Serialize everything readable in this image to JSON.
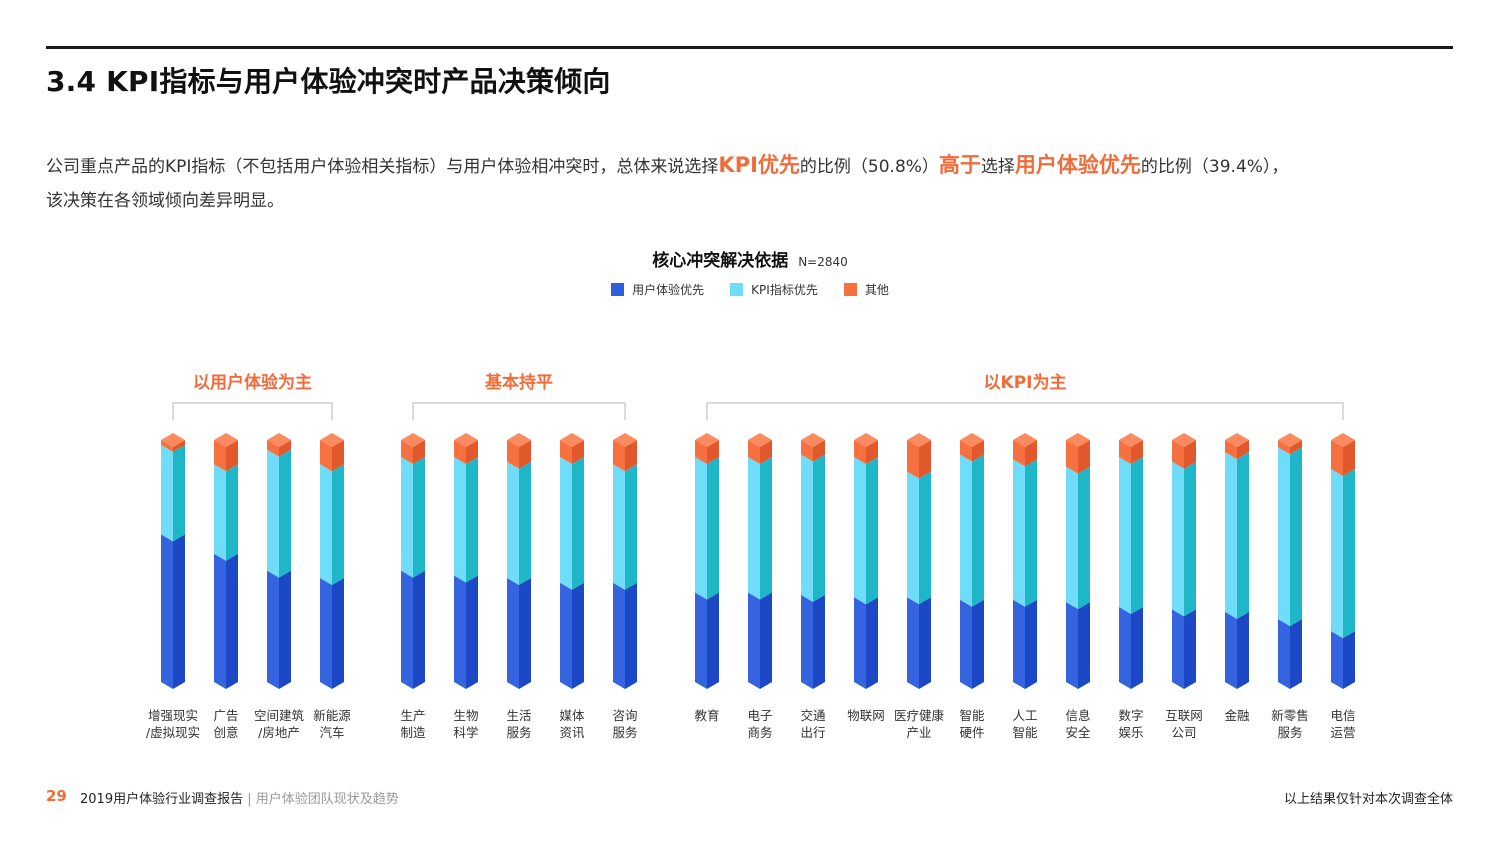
{
  "page": {
    "title": "3.4 KPI指标与用户体验冲突时产品决策倾向",
    "summary": {
      "p1": "公司重点产品的KPI指标（不包括用户体验相关指标）与用户体验相冲突时，总体来说选择",
      "hl1": "KPI优先",
      "p2": "的比例（50.8%）",
      "hl2": "高于",
      "p3": "选择",
      "hl3": "用户体验优先",
      "p4": "的比例（39.4%），",
      "line2": "该决策在各领域倾向差异明显。"
    },
    "footer": {
      "page_number": "29",
      "report_title": "2019用户体验行业调查报告",
      "separator": " | ",
      "section": "用户体验团队现状及趋势",
      "note": "以上结果仅针对本次调查全体"
    }
  },
  "chart_data": {
    "type": "bar",
    "stacked": true,
    "title": "核心冲突解决依据",
    "sample_size": "N=2840",
    "ylim": [
      0,
      100
    ],
    "legend_position": "top-center",
    "legend": [
      {
        "name": "用户体验优先",
        "color": "#2f5fdd"
      },
      {
        "name": "KPI指标优先",
        "color": "#6fdcf9"
      },
      {
        "name": "其他",
        "color": "#f7703f"
      }
    ],
    "groups": [
      {
        "label": "以用户体验为主",
        "categories": [
          0,
          1,
          2,
          3
        ]
      },
      {
        "label": "基本持平",
        "categories": [
          4,
          5,
          6,
          7,
          8
        ]
      },
      {
        "label": "以KPI为主",
        "categories": [
          9,
          10,
          11,
          12,
          13,
          14,
          15,
          16,
          17,
          18,
          19,
          20,
          21
        ]
      }
    ],
    "categories": [
      [
        "增强现实",
        "/虚拟现实"
      ],
      [
        "广告",
        "创意"
      ],
      [
        "空间建筑",
        "/房地产"
      ],
      [
        "新能源",
        "汽车"
      ],
      [
        "生产",
        "制造"
      ],
      [
        "生物",
        "科学"
      ],
      [
        "生活",
        "服务"
      ],
      [
        "媒体",
        "资讯"
      ],
      [
        "咨询",
        "服务"
      ],
      [
        "教育"
      ],
      [
        "电子",
        "商务"
      ],
      [
        "交通",
        "出行"
      ],
      [
        "物联网"
      ],
      [
        "医疗健康",
        "产业"
      ],
      [
        "智能",
        "硬件"
      ],
      [
        "人工",
        "智能"
      ],
      [
        "信息",
        "安全"
      ],
      [
        "数字",
        "娱乐"
      ],
      [
        "互联网",
        "公司"
      ],
      [
        "金融"
      ],
      [
        "新零售",
        "服务"
      ],
      [
        "电信",
        "运营"
      ]
    ],
    "series": [
      {
        "name": "用户体验优先",
        "values": [
          61,
          53,
          46,
          43,
          46,
          44,
          43,
          41,
          41,
          37,
          37,
          36,
          35,
          35,
          34,
          34,
          33,
          31,
          30,
          29,
          26,
          21
        ]
      },
      {
        "name": "KPI指标优先",
        "values": [
          37,
          37,
          50,
          47,
          47,
          49,
          48,
          52,
          49,
          56,
          56,
          58,
          58,
          52,
          60,
          58,
          56,
          62,
          61,
          66,
          71,
          67
        ]
      },
      {
        "name": "其他",
        "values": [
          2,
          10,
          4,
          10,
          7,
          7,
          9,
          7,
          10,
          7,
          7,
          6,
          7,
          13,
          6,
          8,
          11,
          7,
          9,
          5,
          3,
          12
        ]
      }
    ]
  }
}
